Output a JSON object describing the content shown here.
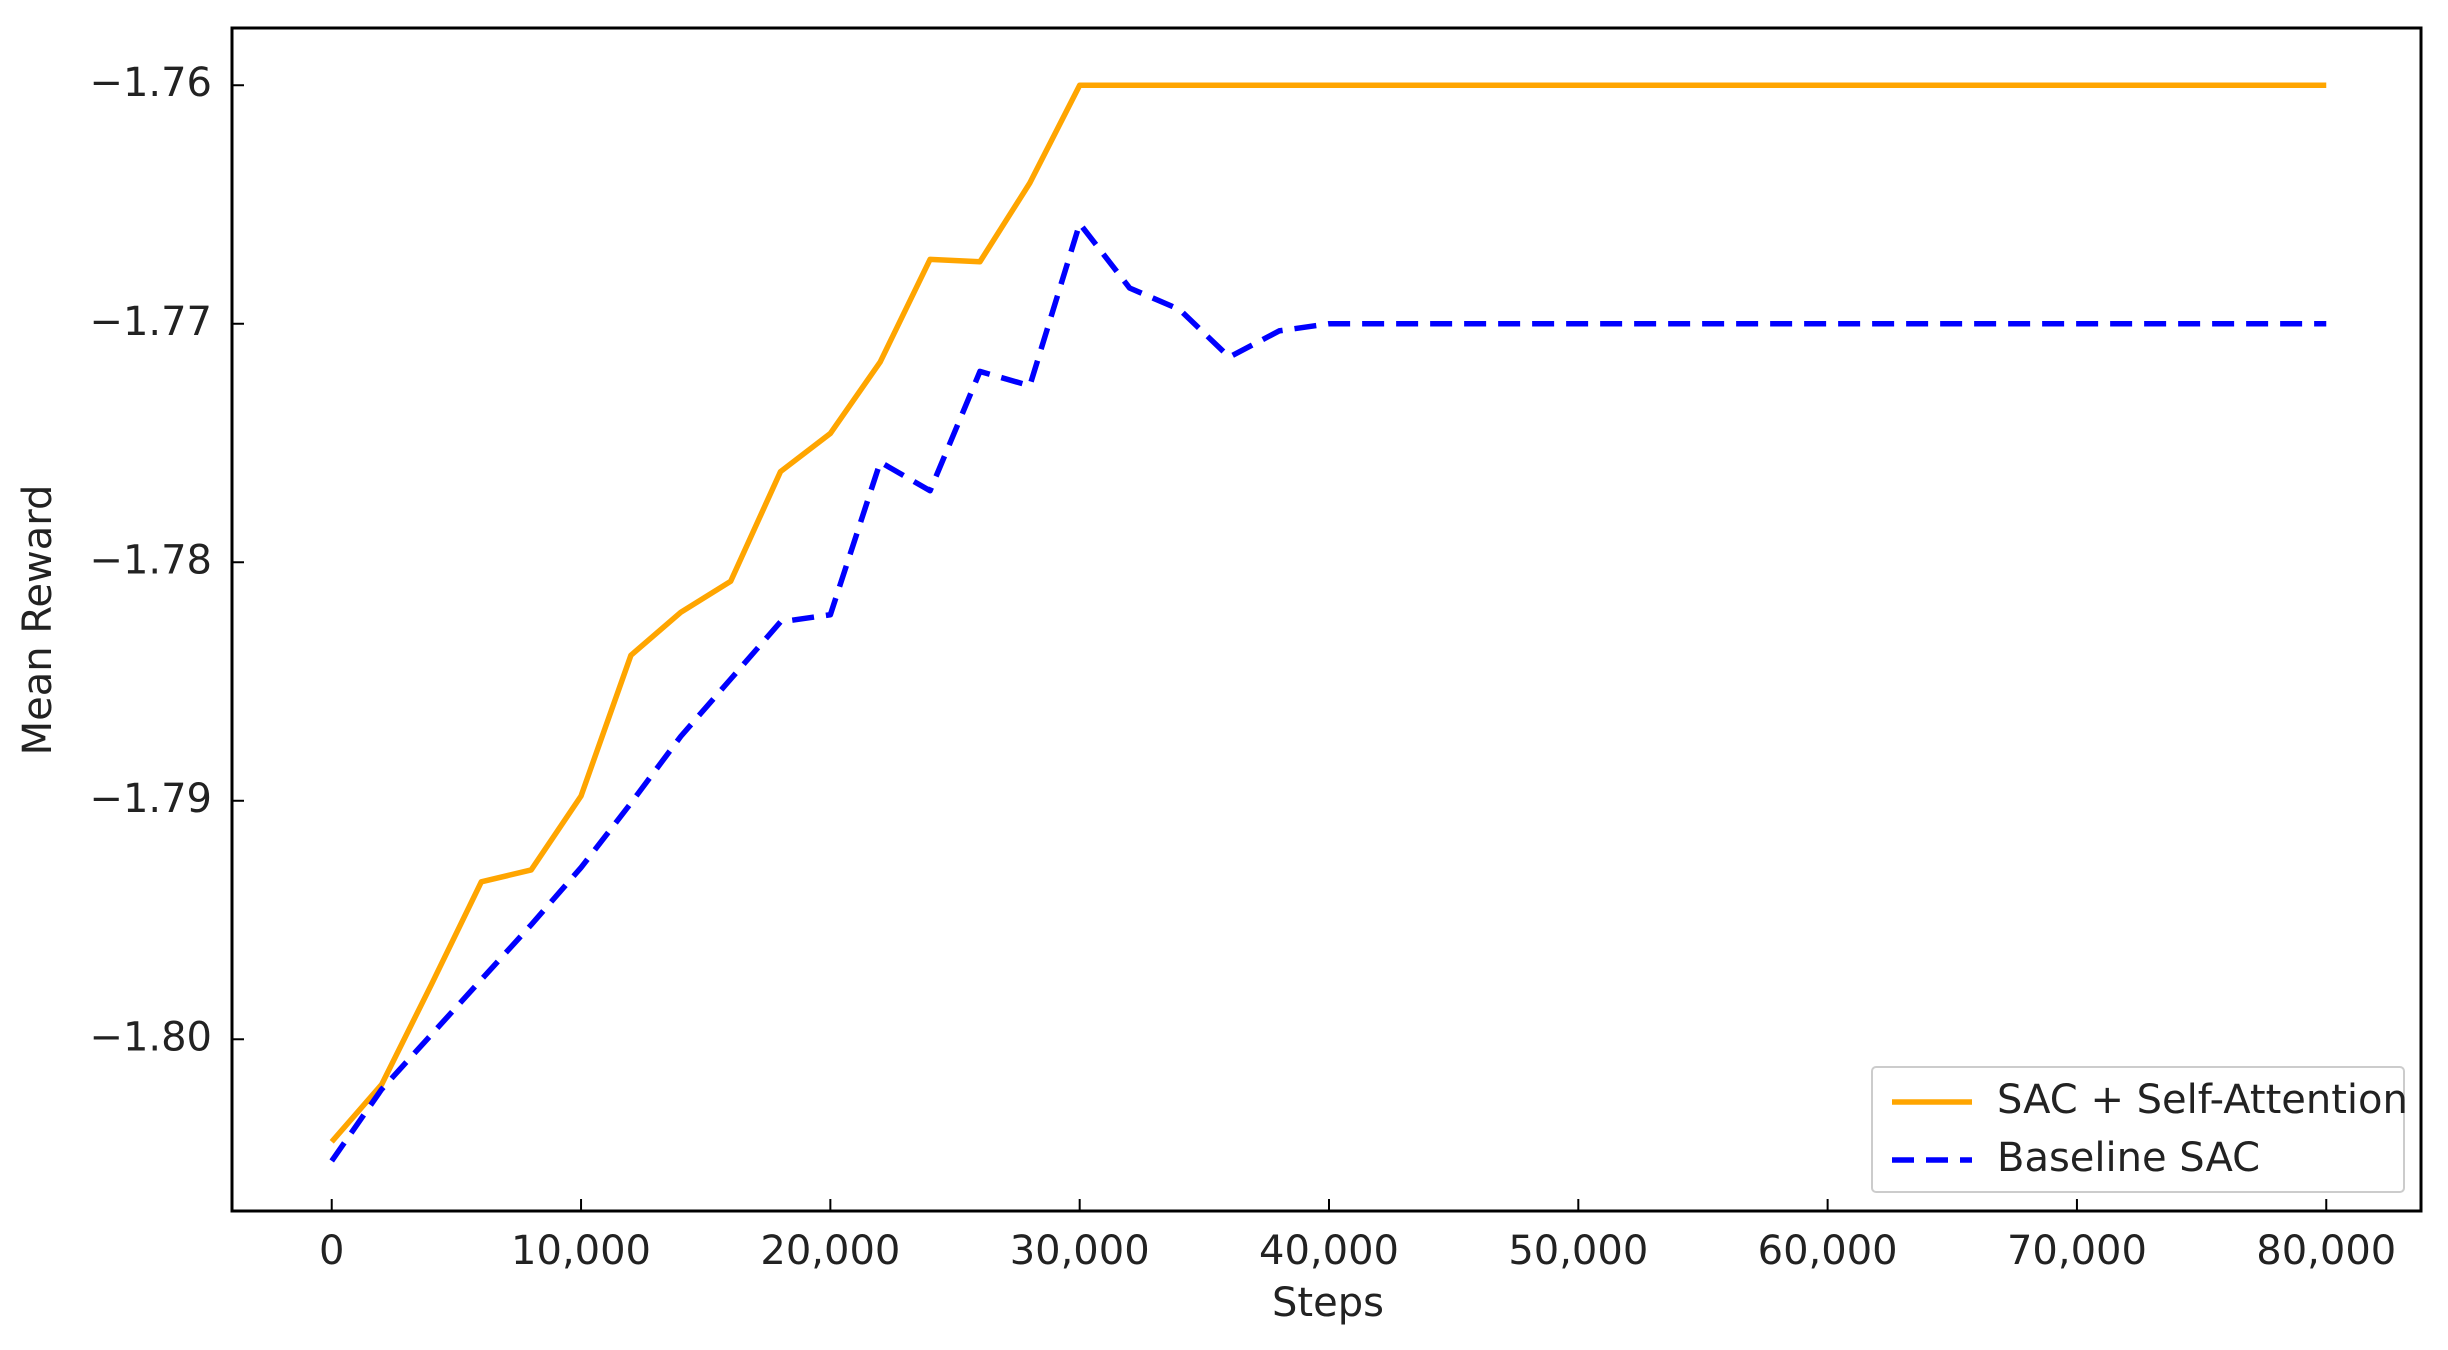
{
  "chart_data": {
    "type": "line",
    "x_label": "Steps",
    "y_label": "Mean Reward",
    "x": [
      0,
      2000,
      4000,
      6000,
      8000,
      10000,
      12000,
      14000,
      16000,
      18000,
      20000,
      22000,
      24000,
      26000,
      28000,
      30000,
      32000,
      34000,
      36000,
      38000,
      40000,
      80000
    ],
    "series": [
      {
        "name": "SAC + Self-Attention",
        "color": "#ffa500",
        "dash": "solid",
        "values": [
          -1.8043,
          -1.8019,
          -1.7977,
          -1.7934,
          -1.7929,
          -1.7898,
          -1.7839,
          -1.7821,
          -1.7808,
          -1.7762,
          -1.7746,
          -1.7716,
          -1.7673,
          -1.7674,
          -1.7641,
          -1.76,
          -1.76,
          -1.76,
          -1.76,
          -1.76,
          -1.76,
          -1.76
        ]
      },
      {
        "name": "Baseline SAC",
        "color": "#0000ff",
        "dash": "dashed",
        "values": [
          -1.8051,
          -1.8021,
          -1.7998,
          -1.7975,
          -1.7952,
          -1.7928,
          -1.7901,
          -1.7873,
          -1.7849,
          -1.7825,
          -1.7822,
          -1.7758,
          -1.777,
          -1.772,
          -1.7726,
          -1.7658,
          -1.7685,
          -1.7694,
          -1.7714,
          -1.7703,
          -1.77,
          -1.77
        ]
      }
    ],
    "xlim": [
      -4000,
      83800
    ],
    "ylim": [
      -1.8072,
      -1.7576
    ],
    "xticks": [
      0,
      {
        "value": 10000,
        "label": "10,000"
      },
      {
        "value": 20000,
        "label": "20,000"
      },
      {
        "value": 30000,
        "label": "30,000"
      },
      {
        "value": 40000,
        "label": "40,000"
      },
      {
        "value": 50000,
        "label": "50,000"
      },
      {
        "value": 60000,
        "label": "60,000"
      },
      {
        "value": 70000,
        "label": "70,000"
      },
      {
        "value": 80000,
        "label": "80,000"
      }
    ],
    "yticks": [
      {
        "value": -1.8,
        "label": "−1.80"
      },
      {
        "value": -1.79,
        "label": "−1.79"
      },
      {
        "value": -1.78,
        "label": "−1.78"
      },
      {
        "value": -1.77,
        "label": "−1.77"
      },
      {
        "value": -1.76,
        "label": "−1.76"
      }
    ],
    "grid": false,
    "legend": "lower right"
  }
}
